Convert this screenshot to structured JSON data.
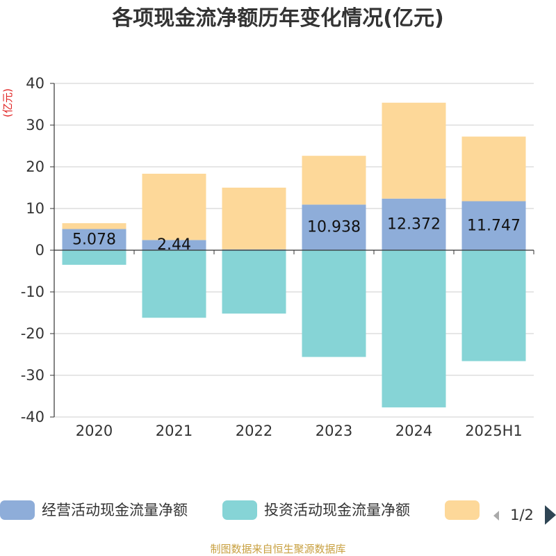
{
  "chart_data": {
    "type": "bar",
    "stacked": true,
    "title": "各项现金流净额历年变化情况(亿元)",
    "ylabel": "(亿元)",
    "categories": [
      "2020",
      "2021",
      "2022",
      "2023",
      "2024",
      "2025H1"
    ],
    "series": [
      {
        "name": "经营活动现金流量净额",
        "color": "#8eadd9",
        "values": [
          5.078,
          2.44,
          0.2,
          10.938,
          12.372,
          11.747
        ],
        "labels": [
          "5.078",
          "2.44",
          "",
          "10.938",
          "12.372",
          "11.747"
        ]
      },
      {
        "name": "投资活动现金流量净额",
        "color": "#86d4d6",
        "values": [
          -3.5,
          -16.2,
          -15.2,
          -25.6,
          -37.7,
          -26.6
        ]
      },
      {
        "name": "",
        "color": "#fdd899",
        "values": [
          1.4,
          15.9,
          14.8,
          11.7,
          23.0,
          15.5
        ]
      }
    ],
    "ylim": [
      -40,
      40
    ],
    "yticks": [
      40,
      30,
      20,
      10,
      0,
      -10,
      -20,
      -30,
      -40
    ],
    "grid": true,
    "legend_position": "bottom"
  },
  "legend": {
    "page_indicator": "1/2"
  },
  "source": "制图数据来自恒生聚源数据库"
}
